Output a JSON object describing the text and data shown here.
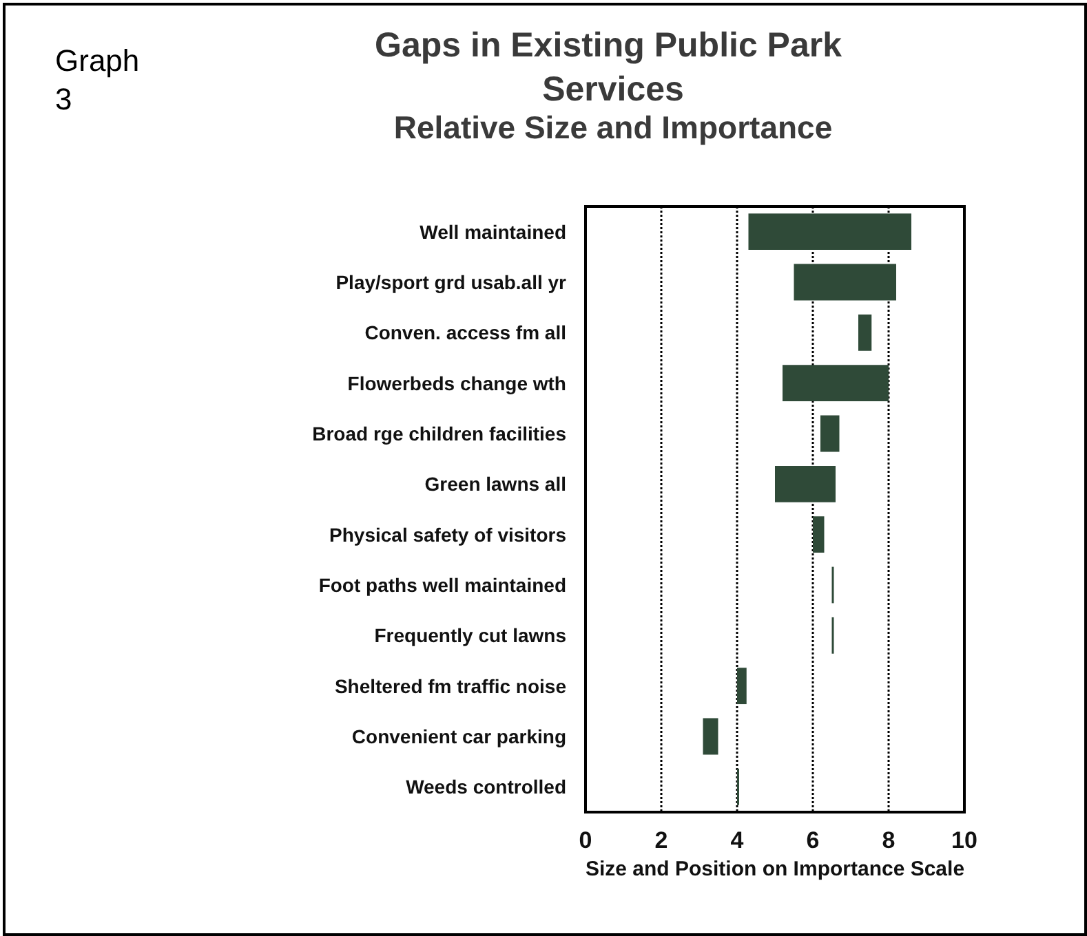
{
  "chart_data": {
    "type": "bar",
    "orientation": "horizontal",
    "title": "Gaps in Existing Public Park Services",
    "subtitle": "Relative Size and Importance",
    "xlabel": "Size and Position on Importance Scale",
    "annotations": [
      "Graph 3"
    ],
    "categories": [
      "Well maintained",
      "Play/sport grd usab.all yr",
      "Conven. access fm all",
      "Flowerbeds change wth",
      "Broad rge children facilities",
      "Green lawns all",
      "Physical safety of visitors",
      "Foot paths well maintained",
      "Frequently cut lawns",
      "Sheltered fm traffic noise",
      "Convenient car parking",
      "Weeds controlled"
    ],
    "base": [
      4.3,
      5.5,
      7.2,
      5.2,
      6.2,
      5.0,
      6.0,
      6.5,
      6.5,
      4.0,
      3.1,
      4.0
    ],
    "values": [
      4.3,
      2.7,
      0.35,
      2.8,
      0.5,
      1.6,
      0.3,
      0.05,
      0.05,
      0.25,
      0.4,
      0.03
    ],
    "color": "#2f4a38",
    "xlim": [
      0,
      10
    ],
    "xticks": [
      0,
      2,
      4,
      6,
      8,
      10
    ],
    "grid": "x"
  }
}
